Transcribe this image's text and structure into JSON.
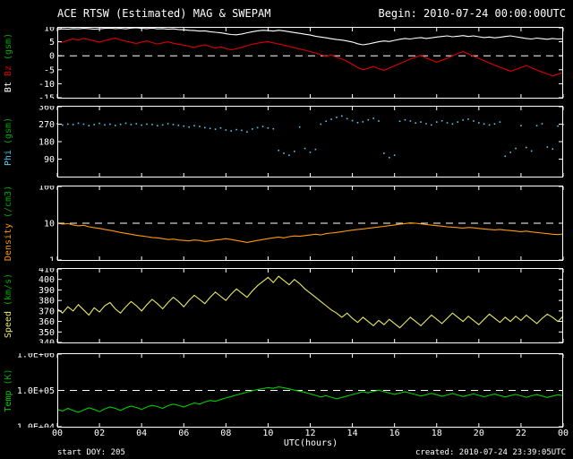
{
  "header": {
    "title": "ACE RTSW (Estimated) MAG & SWEPAM",
    "begin_label": "Begin: 2010-07-24 00:00:00UTC"
  },
  "footer": {
    "start_label": "start DOY: 205",
    "created_label": "created: 2010-07-24 23:39:05UTC"
  },
  "x_axis": {
    "label": "UTC(hours)",
    "range": [
      0,
      24
    ],
    "tick_hours": [
      0,
      2,
      4,
      6,
      8,
      10,
      12,
      14,
      16,
      18,
      20,
      22,
      24
    ],
    "tick_labels": [
      "00",
      "02",
      "04",
      "06",
      "08",
      "10",
      "12",
      "14",
      "16",
      "18",
      "20",
      "22",
      "00"
    ]
  },
  "colors": {
    "background": "#000000",
    "frame": "#ffffff",
    "bt": "#ffffff",
    "bz": "#dd0000",
    "phi": "#55c8ee",
    "density": "#ff9900",
    "speed": "#e8e868",
    "temp": "#00cc00",
    "units": "#00aa00"
  },
  "chart_data": [
    {
      "id": "bt-bz",
      "type": "line",
      "title": "Bt Bz (gsm)",
      "ylabel_segments": [
        {
          "text": "Bt ",
          "color": "#ffffff"
        },
        {
          "text": "Bz ",
          "color": "#dd0000"
        },
        {
          "text": "(gsm)",
          "color": "#00aa00"
        }
      ],
      "scale": "linear",
      "ylim": [
        -15,
        10
      ],
      "yticks": [
        {
          "v": 10,
          "label": "10"
        },
        {
          "v": 5,
          "label": "5"
        },
        {
          "v": 0,
          "label": "0"
        },
        {
          "v": -5,
          "label": "-5"
        },
        {
          "v": -10,
          "label": "-10"
        },
        {
          "v": -15,
          "label": "-15"
        }
      ],
      "ref_value": 0,
      "x_start": 0,
      "x_step": 0.25,
      "series": [
        {
          "name": "Bt",
          "color": "#ffffff",
          "mode": "line",
          "values": [
            9.4,
            9.6,
            9.5,
            9.7,
            9.6,
            9.8,
            9.7,
            9.5,
            9.6,
            9.8,
            9.9,
            9.7,
            9.8,
            9.6,
            9.9,
            10.0,
            9.8,
            9.7,
            9.9,
            9.6,
            9.7,
            9.5,
            9.6,
            9.4,
            9.3,
            9.1,
            9.0,
            8.8,
            8.9,
            8.6,
            8.4,
            8.2,
            7.9,
            7.6,
            7.5,
            7.8,
            8.2,
            8.6,
            8.9,
            9.1,
            9.0,
            8.8,
            9.1,
            8.9,
            8.6,
            8.3,
            8.0,
            7.7,
            7.4,
            7.0,
            6.7,
            6.4,
            6.1,
            5.8,
            5.6,
            5.3,
            4.9,
            4.3,
            3.9,
            4.2,
            4.6,
            5.0,
            5.3,
            5.1,
            5.5,
            5.9,
            6.2,
            6.0,
            6.3,
            6.5,
            6.2,
            6.4,
            6.7,
            6.9,
            7.1,
            6.8,
            7.0,
            7.2,
            6.9,
            7.1,
            6.8,
            6.5,
            6.7,
            6.4,
            6.6,
            6.9,
            7.1,
            6.8,
            6.5,
            6.2,
            6.0,
            6.3,
            6.1,
            5.9,
            6.2,
            6.0,
            6.1
          ]
        },
        {
          "name": "Bz",
          "color": "#dd0000",
          "mode": "line",
          "values": [
            5.2,
            4.8,
            5.5,
            6.0,
            5.6,
            6.2,
            5.8,
            5.3,
            4.9,
            5.4,
            5.9,
            6.3,
            5.7,
            5.2,
            4.8,
            4.4,
            4.9,
            5.3,
            4.7,
            4.2,
            4.6,
            5.0,
            4.5,
            4.1,
            3.8,
            3.4,
            3.0,
            3.5,
            3.9,
            3.3,
            2.8,
            3.2,
            2.6,
            2.1,
            2.5,
            3.0,
            3.6,
            4.1,
            4.5,
            4.8,
            5.0,
            4.6,
            4.2,
            3.8,
            3.3,
            2.9,
            2.4,
            2.0,
            1.5,
            1.0,
            0.4,
            -0.2,
            0.3,
            -0.5,
            -1.2,
            -2.0,
            -3.1,
            -4.2,
            -5.0,
            -4.5,
            -3.8,
            -4.6,
            -5.2,
            -4.4,
            -3.6,
            -2.8,
            -2.0,
            -1.2,
            -0.5,
            0.2,
            -0.8,
            -1.5,
            -2.3,
            -1.6,
            -0.9,
            0.0,
            0.8,
            1.5,
            0.7,
            -0.2,
            -1.0,
            -1.8,
            -2.6,
            -3.4,
            -4.1,
            -4.8,
            -5.5,
            -4.9,
            -4.2,
            -3.5,
            -4.3,
            -5.1,
            -5.8,
            -6.5,
            -7.2,
            -6.6,
            -6.0
          ]
        }
      ]
    },
    {
      "id": "phi",
      "type": "scatter",
      "title": "Phi (gsm)",
      "ylabel_segments": [
        {
          "text": "Phi ",
          "color": "#55c8ee"
        },
        {
          "text": "(gsm)",
          "color": "#00aa00"
        }
      ],
      "scale": "linear",
      "ylim": [
        0,
        360
      ],
      "yticks": [
        {
          "v": 360,
          "label": "360"
        },
        {
          "v": 270,
          "label": "270"
        },
        {
          "v": 180,
          "label": "180"
        },
        {
          "v": 90,
          "label": "90"
        }
      ],
      "ref_value": null,
      "x_start": 0,
      "x_step": 0.25,
      "series": [
        {
          "name": "Phi",
          "color": "#55c8ee",
          "mode": "dots",
          "values": [
            272,
            265,
            270,
            268,
            275,
            270,
            262,
            268,
            274,
            266,
            270,
            263,
            269,
            275,
            268,
            272,
            265,
            270,
            268,
            262,
            266,
            272,
            268,
            264,
            260,
            255,
            262,
            258,
            252,
            248,
            244,
            250,
            240,
            235,
            242,
            238,
            230,
            245,
            252,
            258,
            250,
            246,
            135,
            120,
            110,
            130,
            255,
            145,
            125,
            140,
            270,
            285,
            295,
            305,
            312,
            298,
            288,
            278,
            282,
            292,
            300,
            286,
            120,
            98,
            110,
            285,
            292,
            286,
            276,
            281,
            272,
            266,
            281,
            287,
            277,
            271,
            281,
            291,
            296,
            286,
            277,
            271,
            266,
            271,
            281,
            105,
            125,
            145,
            262,
            150,
            132,
            262,
            272,
            152,
            142,
            260,
            268
          ]
        }
      ]
    },
    {
      "id": "density",
      "type": "line",
      "title": "Density (/cm3)",
      "ylabel_segments": [
        {
          "text": "Density ",
          "color": "#ff9900"
        },
        {
          "text": "(/cm3)",
          "color": "#00aa00"
        }
      ],
      "scale": "log",
      "ylim": [
        1,
        100
      ],
      "yticks": [
        {
          "v": 100,
          "label": "100"
        },
        {
          "v": 10,
          "label": "10"
        },
        {
          "v": 1,
          "label": "1"
        }
      ],
      "ref_value": 10,
      "x_start": 0,
      "x_step": 0.25,
      "series": [
        {
          "name": "Density",
          "color": "#ff9900",
          "mode": "line",
          "values": [
            10.0,
            9.5,
            9.8,
            9.0,
            8.5,
            8.8,
            8.0,
            7.6,
            7.2,
            6.8,
            6.4,
            6.0,
            5.6,
            5.3,
            5.0,
            4.7,
            4.5,
            4.3,
            4.1,
            4.0,
            3.8,
            3.6,
            3.7,
            3.5,
            3.4,
            3.3,
            3.5,
            3.4,
            3.2,
            3.3,
            3.5,
            3.6,
            3.8,
            3.6,
            3.4,
            3.2,
            3.0,
            3.2,
            3.4,
            3.6,
            3.8,
            4.0,
            4.2,
            4.0,
            4.3,
            4.5,
            4.4,
            4.6,
            4.8,
            5.0,
            4.8,
            5.2,
            5.4,
            5.6,
            5.9,
            6.2,
            6.5,
            6.8,
            7.0,
            7.3,
            7.6,
            7.9,
            8.2,
            8.6,
            9.0,
            9.4,
            9.8,
            10.2,
            10.0,
            9.6,
            9.2,
            8.9,
            8.6,
            8.3,
            8.0,
            7.8,
            7.6,
            7.4,
            7.7,
            7.5,
            7.2,
            7.0,
            6.8,
            6.6,
            6.8,
            6.5,
            6.3,
            6.1,
            5.9,
            6.1,
            5.8,
            5.6,
            5.4,
            5.2,
            5.0,
            4.9,
            5.1
          ]
        }
      ]
    },
    {
      "id": "speed",
      "type": "line",
      "title": "Speed (km/s)",
      "ylabel_segments": [
        {
          "text": "Speed ",
          "color": "#e8e868"
        },
        {
          "text": "(km/s)",
          "color": "#00aa00"
        }
      ],
      "scale": "linear",
      "ylim": [
        340,
        410
      ],
      "yticks": [
        {
          "v": 410,
          "label": "410"
        },
        {
          "v": 400,
          "label": "400"
        },
        {
          "v": 390,
          "label": "390"
        },
        {
          "v": 380,
          "label": "380"
        },
        {
          "v": 370,
          "label": "370"
        },
        {
          "v": 360,
          "label": "360"
        },
        {
          "v": 350,
          "label": "350"
        },
        {
          "v": 340,
          "label": "340"
        }
      ],
      "ref_value": null,
      "x_start": 0,
      "x_step": 0.25,
      "series": [
        {
          "name": "Speed",
          "color": "#e8e868",
          "mode": "line",
          "values": [
            372,
            368,
            374,
            370,
            376,
            371,
            366,
            373,
            369,
            375,
            378,
            372,
            368,
            374,
            379,
            375,
            370,
            376,
            381,
            377,
            372,
            378,
            383,
            379,
            374,
            380,
            385,
            381,
            377,
            383,
            388,
            384,
            380,
            386,
            391,
            387,
            383,
            389,
            394,
            398,
            402,
            397,
            403,
            399,
            395,
            400,
            396,
            391,
            387,
            383,
            379,
            375,
            371,
            368,
            364,
            368,
            363,
            359,
            364,
            360,
            356,
            361,
            357,
            362,
            358,
            354,
            359,
            364,
            360,
            356,
            361,
            366,
            362,
            358,
            363,
            368,
            364,
            360,
            365,
            361,
            357,
            362,
            367,
            363,
            359,
            364,
            360,
            365,
            361,
            366,
            362,
            358,
            363,
            367,
            364,
            360,
            365
          ]
        }
      ]
    },
    {
      "id": "temp",
      "type": "line",
      "title": "Temp (K)",
      "ylabel_segments": [
        {
          "text": "Temp ",
          "color": "#00cc00"
        },
        {
          "text": "(K)",
          "color": "#00aa00"
        }
      ],
      "scale": "log",
      "ylim": [
        10000,
        1000000
      ],
      "yticks": [
        {
          "v": 1000000,
          "label": "1.0E+06"
        },
        {
          "v": 100000,
          "label": "1.0E+05"
        },
        {
          "v": 10000,
          "label": "1.0E+04"
        }
      ],
      "ref_value": 100000,
      "x_start": 0,
      "x_step": 0.25,
      "series": [
        {
          "name": "Temp",
          "color": "#00cc00",
          "mode": "line",
          "values": [
            30000,
            27000,
            32000,
            28000,
            25000,
            29000,
            33000,
            30000,
            26000,
            31000,
            35000,
            32000,
            28000,
            33000,
            37000,
            34000,
            30000,
            35000,
            39000,
            36000,
            32000,
            38000,
            42000,
            39000,
            35000,
            40000,
            45000,
            42000,
            48000,
            53000,
            50000,
            56000,
            62000,
            68000,
            75000,
            82000,
            90000,
            98000,
            105000,
            112000,
            120000,
            114000,
            125000,
            118000,
            110000,
            102000,
            95000,
            88000,
            80000,
            73000,
            66000,
            72000,
            65000,
            59000,
            64000,
            70000,
            77000,
            84000,
            92000,
            86000,
            94000,
            101000,
            93000,
            85000,
            78000,
            85000,
            92000,
            84000,
            77000,
            70000,
            76000,
            83000,
            76000,
            69000,
            75000,
            82000,
            75000,
            68000,
            74000,
            80000,
            73000,
            67000,
            73000,
            79000,
            72000,
            66000,
            72000,
            78000,
            71000,
            65000,
            71000,
            77000,
            70000,
            64000,
            70000,
            76000,
            72000
          ]
        }
      ]
    }
  ]
}
